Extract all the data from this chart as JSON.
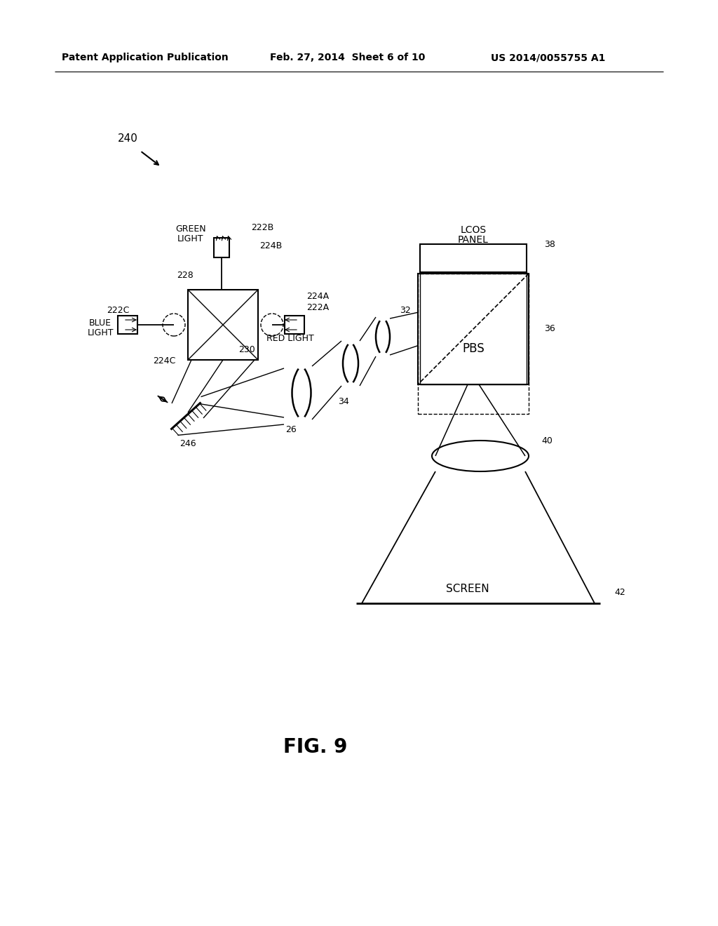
{
  "bg_color": "#ffffff",
  "header_left": "Patent Application Publication",
  "header_mid": "Feb. 27, 2014  Sheet 6 of 10",
  "header_right": "US 2014/0055755 A1",
  "fig_label": "FIG. 9"
}
